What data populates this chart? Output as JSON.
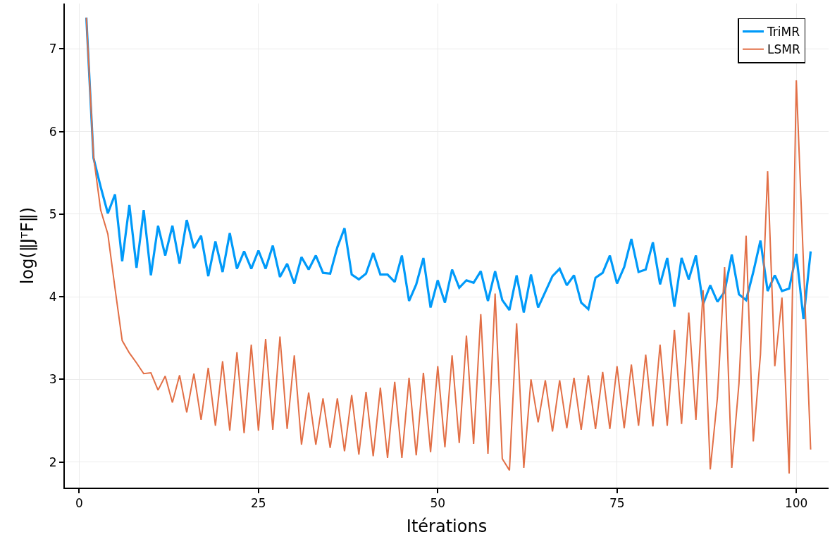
{
  "chart_data": {
    "type": "line",
    "xlabel": "Itérations",
    "ylabel": "log(‖JᵀF‖)",
    "x": [
      1,
      2,
      3,
      4,
      5,
      6,
      7,
      8,
      9,
      10,
      11,
      12,
      13,
      14,
      15,
      16,
      17,
      18,
      19,
      20,
      21,
      22,
      23,
      24,
      25,
      26,
      27,
      28,
      29,
      30,
      31,
      32,
      33,
      34,
      35,
      36,
      37,
      38,
      39,
      40,
      41,
      42,
      43,
      44,
      45,
      46,
      47,
      48,
      49,
      50,
      51,
      52,
      53,
      54,
      55,
      56,
      57,
      58,
      59,
      60,
      61,
      62,
      63,
      64,
      65,
      66,
      67,
      68,
      69,
      70,
      71,
      72,
      73,
      74,
      75,
      76,
      77,
      78,
      79,
      80,
      81,
      82,
      83,
      84,
      85,
      86,
      87,
      88,
      89,
      90,
      91,
      92,
      93,
      94,
      95,
      96,
      97,
      98,
      99,
      100,
      101,
      102
    ],
    "series": [
      {
        "name": "TriMR",
        "color": "#009af9",
        "values": [
          7.38,
          5.68,
          5.33,
          5.01,
          5.24,
          4.43,
          5.11,
          4.35,
          5.05,
          4.26,
          4.86,
          4.5,
          4.86,
          4.4,
          4.93,
          4.59,
          4.74,
          4.25,
          4.67,
          4.3,
          4.77,
          4.34,
          4.55,
          4.34,
          4.56,
          4.34,
          4.62,
          4.24,
          4.4,
          4.16,
          4.48,
          4.33,
          4.5,
          4.29,
          4.28,
          4.6,
          4.83,
          4.27,
          4.21,
          4.28,
          4.53,
          4.27,
          4.27,
          4.18,
          4.5,
          3.95,
          4.15,
          4.47,
          3.87,
          4.2,
          3.93,
          4.33,
          4.11,
          4.2,
          4.17,
          4.31,
          3.95,
          4.31,
          3.96,
          3.84,
          4.26,
          3.81,
          4.27,
          3.87,
          4.06,
          4.25,
          4.34,
          4.14,
          4.26,
          3.93,
          3.85,
          4.23,
          4.29,
          4.5,
          4.16,
          4.36,
          4.7,
          4.3,
          4.33,
          4.66,
          4.15,
          4.47,
          3.88,
          4.47,
          4.21,
          4.5,
          3.91,
          4.14,
          3.94,
          4.06,
          4.51,
          4.03,
          3.96,
          4.3,
          4.68,
          4.07,
          4.26,
          4.07,
          4.1,
          4.52,
          3.73,
          4.55
        ]
      },
      {
        "name": "LSMR",
        "color": "#e26f46",
        "values": [
          7.38,
          5.7,
          5.05,
          4.76,
          4.1,
          3.47,
          3.32,
          3.2,
          3.07,
          3.08,
          2.87,
          3.04,
          2.72,
          3.05,
          2.6,
          3.07,
          2.51,
          3.14,
          2.44,
          3.22,
          2.38,
          3.33,
          2.35,
          3.42,
          2.38,
          3.49,
          2.39,
          3.52,
          2.4,
          3.29,
          2.21,
          2.84,
          2.21,
          2.77,
          2.17,
          2.77,
          2.13,
          2.81,
          2.09,
          2.85,
          2.07,
          2.9,
          2.05,
          2.97,
          2.05,
          3.02,
          2.08,
          3.08,
          2.12,
          3.16,
          2.18,
          3.29,
          2.23,
          3.53,
          2.22,
          3.79,
          2.1,
          4.04,
          2.04,
          1.9,
          3.68,
          1.93,
          3.0,
          2.48,
          2.99,
          2.37,
          2.99,
          2.41,
          3.02,
          2.39,
          3.05,
          2.4,
          3.09,
          2.4,
          3.16,
          2.41,
          3.18,
          2.44,
          3.3,
          2.43,
          3.42,
          2.44,
          3.6,
          2.46,
          3.81,
          2.51,
          4.08,
          1.91,
          2.78,
          4.36,
          1.93,
          2.95,
          4.74,
          2.25,
          3.3,
          5.52,
          3.16,
          3.99,
          1.86,
          6.62,
          4.4,
          2.15
        ]
      }
    ],
    "xlim": [
      -2,
      104.5
    ],
    "xticks": [
      0,
      25,
      50,
      75,
      100
    ],
    "ylim": [
      1.69,
      7.55
    ],
    "yticks": [
      2,
      3,
      4,
      5,
      6,
      7
    ],
    "grid": true,
    "legend": "top right",
    "line_style": "solid",
    "marker": "none"
  }
}
